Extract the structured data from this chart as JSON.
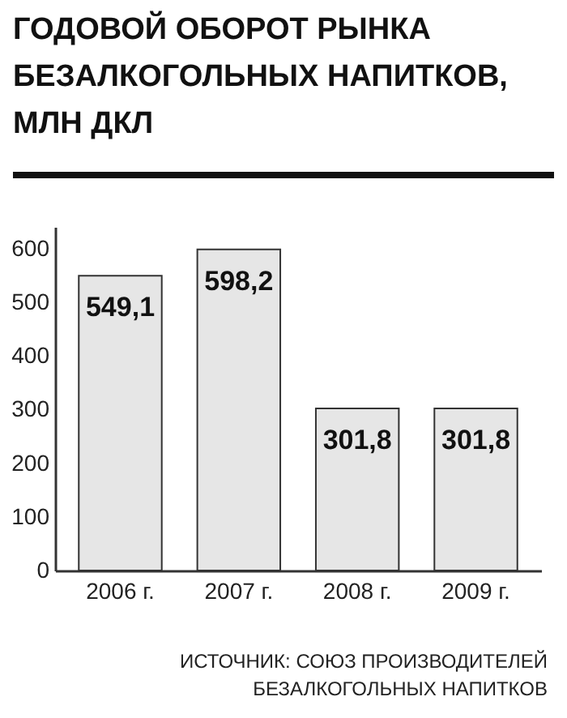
{
  "chart_data": {
    "type": "bar",
    "title": "ГОДОВОЙ ОБОРОТ РЫНКА\nБЕЗАЛКОГОЛЬНЫХ НАПИТКОВ,\nМЛН ДКЛ",
    "categories": [
      "2006 г.",
      "2007 г.",
      "2008 г.",
      "2009 г."
    ],
    "values": [
      549.1,
      598.2,
      301.8,
      301.8
    ],
    "value_labels": [
      "549,1",
      "598,2",
      "301,8",
      "301,8"
    ],
    "color": "#e6e6e6",
    "ylim": [
      0,
      640
    ],
    "yticks": [
      0,
      100,
      200,
      300,
      400,
      500,
      600
    ],
    "grid": false,
    "annotations": [
      "ИСТОЧНИК: СОЮЗ ПРОИЗВОДИТЕЛЕЙ\nБЕЗАЛКОГОЛЬНЫХ НАПИТКОВ"
    ]
  }
}
